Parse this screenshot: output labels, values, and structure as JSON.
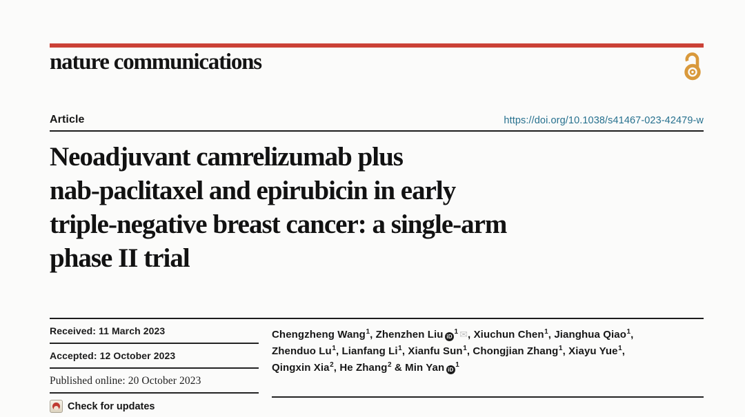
{
  "colors": {
    "masthead_red": "#cb4136",
    "open_access_orange": "#d9993b",
    "doi_teal": "#26708e",
    "text_black": "#161616",
    "crossmark_red": "#bf3a31",
    "email_icon_gray": "#c4c4c4",
    "background": "#fbfbfa"
  },
  "masthead": {
    "journal": "nature communications"
  },
  "article_header": {
    "kicker": "Article",
    "doi": "https://doi.org/10.1038/s41467-023-42479-w",
    "title_lines": [
      "Neoadjuvant camrelizumab plus",
      "nab-paclitaxel and epirubicin in early",
      "triple-negative breast cancer: a single-arm",
      "phase II trial"
    ]
  },
  "dates": {
    "received": "Received: 11 March 2023",
    "accepted": "Accepted: 12 October 2023",
    "published": "Published online: 20 October 2023",
    "check_updates": "Check for updates"
  },
  "icons": {
    "open_access": "open-padlock",
    "orcid_label": "iD",
    "email_glyph": "✉",
    "crossmark": "crossmark-badge"
  },
  "authors": {
    "lines": [
      [
        {
          "name": "Chengzheng Wang",
          "sup": "1",
          "sep": ", "
        },
        {
          "name": "Zhenzhen Liu",
          "orcid": true,
          "sup": "1",
          "mail": true,
          "sep": ", "
        },
        {
          "name": "Xiuchun Chen",
          "sup": "1",
          "sep": ", "
        },
        {
          "name": "Jianghua Qiao",
          "sup": "1",
          "sep": ","
        }
      ],
      [
        {
          "name": "Zhenduo Lu",
          "sup": "1",
          "sep": ", "
        },
        {
          "name": "Lianfang Li",
          "sup": "1",
          "sep": ", "
        },
        {
          "name": "Xianfu Sun",
          "sup": "1",
          "sep": ", "
        },
        {
          "name": "Chongjian Zhang",
          "sup": "1",
          "sep": ", "
        },
        {
          "name": "Xiayu Yue",
          "sup": "1",
          "sep": ","
        }
      ],
      [
        {
          "name": "Qingxin Xia",
          "sup": "2",
          "sep": ", "
        },
        {
          "name": "He Zhang",
          "sup": "2",
          "sep": " & "
        },
        {
          "name": "Min Yan",
          "orcid": true,
          "sup": "1",
          "sep": ""
        }
      ]
    ]
  }
}
